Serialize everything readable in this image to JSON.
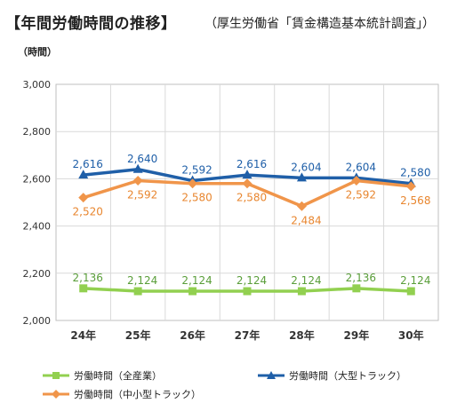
{
  "header": {
    "title": "【年間労働時間の推移】",
    "subtitle": "（厚生労働省「賃金構造基本統計調査」）",
    "unit": "（時間）"
  },
  "chart_data": {
    "type": "line",
    "categories": [
      "24年",
      "25年",
      "26年",
      "27年",
      "28年",
      "29年",
      "30年"
    ],
    "ylim": [
      2000,
      3000
    ],
    "yticks": [
      "2,000",
      "2,200",
      "2,400",
      "2,600",
      "2,800",
      "3,000"
    ],
    "grid": true,
    "legend_position": "bottom",
    "series": [
      {
        "name": "労働時間（全産業）",
        "color": "#92d050",
        "marker": "square",
        "values": [
          2136,
          2124,
          2124,
          2124,
          2124,
          2136,
          2124
        ],
        "labels": [
          "2,136",
          "2,124",
          "2,124",
          "2,124",
          "2,124",
          "2,136",
          "2,124"
        ],
        "label_position": "above"
      },
      {
        "name": "労働時間（大型トラック）",
        "color": "#1f5fa8",
        "marker": "triangle",
        "values": [
          2616,
          2640,
          2592,
          2616,
          2604,
          2604,
          2580
        ],
        "labels": [
          "2,616",
          "2,640",
          "2,592",
          "2,616",
          "2,604",
          "2,604",
          "2,580"
        ],
        "label_position": "above"
      },
      {
        "name": "労働時間（中小型トラック）",
        "color": "#f0954a",
        "marker": "diamond",
        "values": [
          2520,
          2592,
          2580,
          2580,
          2484,
          2592,
          2568
        ],
        "labels": [
          "2,520",
          "2,592",
          "2,580",
          "2,580",
          "2,484",
          "2,592",
          "2,568"
        ],
        "label_position": "below"
      }
    ]
  }
}
